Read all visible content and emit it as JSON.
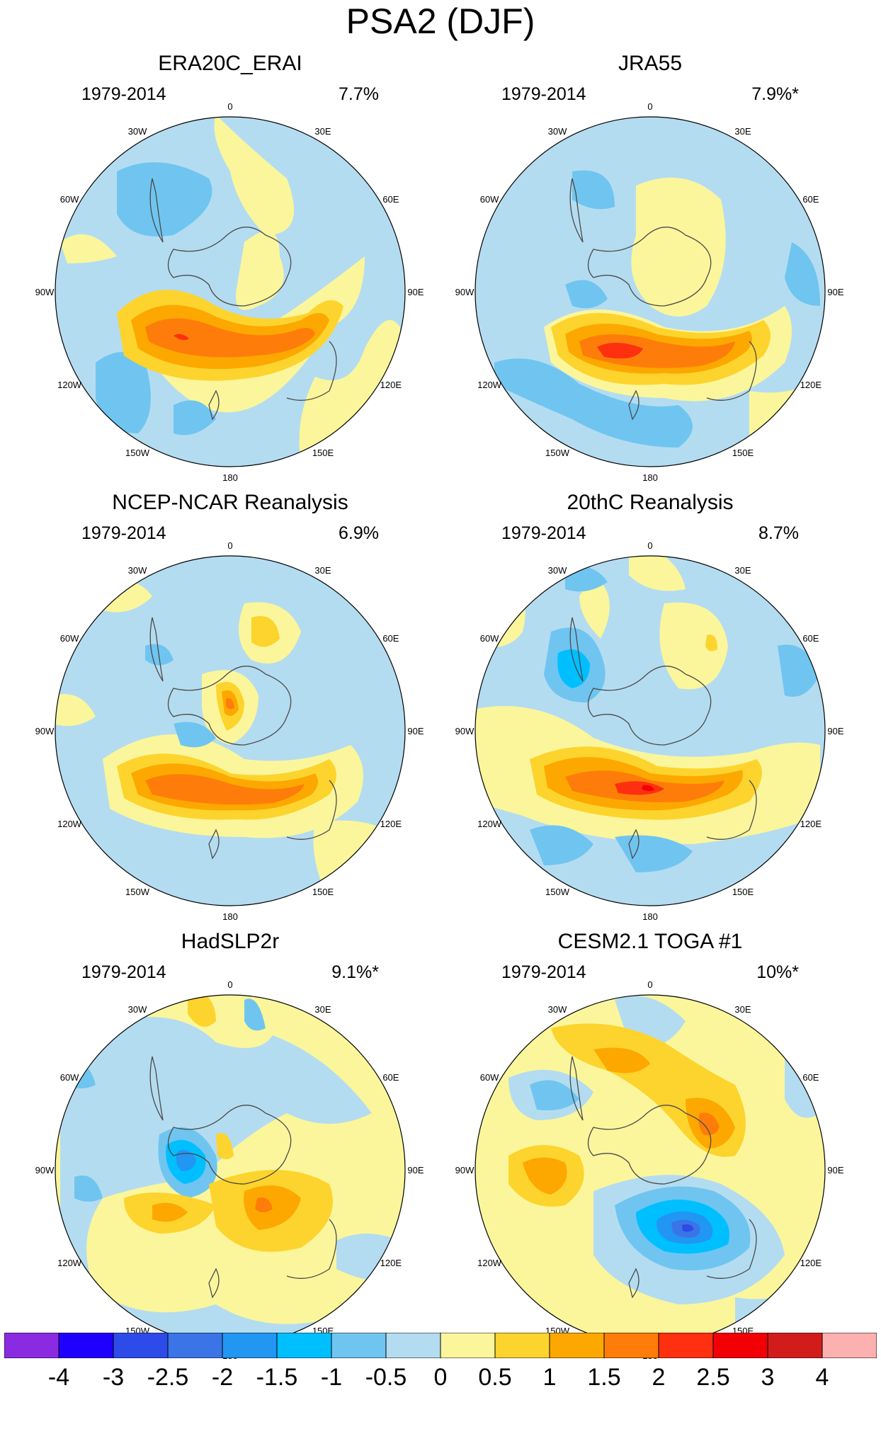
{
  "title": "PSA2 (DJF)",
  "colors": {
    "levels": [
      "#8a2be2",
      "#1f00ff",
      "#2d4be8",
      "#3a74e6",
      "#2196f3",
      "#00bfff",
      "#6fc5f0",
      "#b4dcf0",
      "#fbf69c",
      "#fdd42d",
      "#fda800",
      "#fe7d0a",
      "#fe3010",
      "#f20006",
      "#d21c1c",
      "#fcb0b0"
    ],
    "land": "#4a4a4a"
  },
  "longitude_labels": [
    "0",
    "30E",
    "60E",
    "90E",
    "120E",
    "150E",
    "180",
    "150W",
    "120W",
    "90W",
    "60W",
    "30W"
  ],
  "panels": [
    {
      "title": "ERA20C_ERAI",
      "period": "1979-2014",
      "variance": "7.7%"
    },
    {
      "title": "JRA55",
      "period": "1979-2014",
      "variance": "7.9%*"
    },
    {
      "title": "NCEP-NCAR Reanalysis",
      "period": "1979-2014",
      "variance": "6.9%"
    },
    {
      "title": "20thC Reanalysis",
      "period": "1979-2014",
      "variance": "8.7%"
    },
    {
      "title": "HadSLP2r",
      "period": "1979-2014",
      "variance": "9.1%*"
    },
    {
      "title": "CESM2.1 TOGA #1",
      "period": "1979-2014",
      "variance": "10%*"
    }
  ],
  "colorbar": {
    "labels": [
      "-4",
      "-3",
      "-2.5",
      "-2",
      "-1.5",
      "-1",
      "-0.5",
      "0",
      "0.5",
      "1",
      "1.5",
      "2",
      "2.5",
      "3",
      "4"
    ]
  }
}
